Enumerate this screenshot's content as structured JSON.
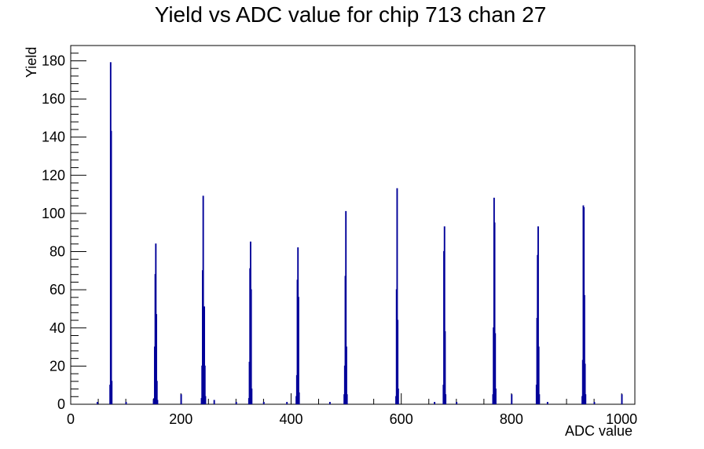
{
  "chart_data": {
    "type": "bar",
    "title": "Yield vs ADC value for chip 713 chan 27",
    "xlabel": "ADC value",
    "ylabel": "Yield",
    "xlim": [
      0,
      1024
    ],
    "ylim": [
      0,
      188
    ],
    "x_ticks": [
      0,
      200,
      400,
      600,
      800,
      1000
    ],
    "y_ticks": [
      0,
      20,
      40,
      60,
      80,
      100,
      120,
      140,
      160,
      180
    ],
    "x_tick_labels": [
      "0",
      "200",
      "400",
      "600",
      "800",
      "1000"
    ],
    "y_tick_labels": [
      "0",
      "20",
      "40",
      "60",
      "80",
      "100",
      "120",
      "140",
      "160",
      "180"
    ],
    "bin_width": 1,
    "line_color": "#000099",
    "bins": [
      {
        "x": 48,
        "y": 1
      },
      {
        "x": 71,
        "y": 10
      },
      {
        "x": 72,
        "y": 179
      },
      {
        "x": 73,
        "y": 143
      },
      {
        "x": 74,
        "y": 12
      },
      {
        "x": 100,
        "y": 1
      },
      {
        "x": 150,
        "y": 2
      },
      {
        "x": 151,
        "y": 3
      },
      {
        "x": 152,
        "y": 30
      },
      {
        "x": 153,
        "y": 68
      },
      {
        "x": 154,
        "y": 84
      },
      {
        "x": 155,
        "y": 47
      },
      {
        "x": 156,
        "y": 12
      },
      {
        "x": 157,
        "y": 2
      },
      {
        "x": 200,
        "y": 5
      },
      {
        "x": 237,
        "y": 3
      },
      {
        "x": 238,
        "y": 20
      },
      {
        "x": 239,
        "y": 70
      },
      {
        "x": 240,
        "y": 109
      },
      {
        "x": 241,
        "y": 37
      },
      {
        "x": 242,
        "y": 51
      },
      {
        "x": 243,
        "y": 20
      },
      {
        "x": 244,
        "y": 4
      },
      {
        "x": 260,
        "y": 2
      },
      {
        "x": 300,
        "y": 1
      },
      {
        "x": 323,
        "y": 3
      },
      {
        "x": 324,
        "y": 22
      },
      {
        "x": 325,
        "y": 71
      },
      {
        "x": 326,
        "y": 85
      },
      {
        "x": 327,
        "y": 60
      },
      {
        "x": 328,
        "y": 8
      },
      {
        "x": 350,
        "y": 1
      },
      {
        "x": 392,
        "y": 1
      },
      {
        "x": 409,
        "y": 4
      },
      {
        "x": 410,
        "y": 15
      },
      {
        "x": 411,
        "y": 65
      },
      {
        "x": 412,
        "y": 82
      },
      {
        "x": 413,
        "y": 56
      },
      {
        "x": 414,
        "y": 6
      },
      {
        "x": 470,
        "y": 1
      },
      {
        "x": 496,
        "y": 5
      },
      {
        "x": 497,
        "y": 20
      },
      {
        "x": 498,
        "y": 67
      },
      {
        "x": 499,
        "y": 101
      },
      {
        "x": 500,
        "y": 30
      },
      {
        "x": 501,
        "y": 5
      },
      {
        "x": 590,
        "y": 4
      },
      {
        "x": 591,
        "y": 60
      },
      {
        "x": 592,
        "y": 113
      },
      {
        "x": 593,
        "y": 44
      },
      {
        "x": 594,
        "y": 8
      },
      {
        "x": 660,
        "y": 1
      },
      {
        "x": 676,
        "y": 10
      },
      {
        "x": 677,
        "y": 80
      },
      {
        "x": 678,
        "y": 93
      },
      {
        "x": 679,
        "y": 38
      },
      {
        "x": 680,
        "y": 5
      },
      {
        "x": 700,
        "y": 1
      },
      {
        "x": 766,
        "y": 5
      },
      {
        "x": 767,
        "y": 40
      },
      {
        "x": 768,
        "y": 108
      },
      {
        "x": 769,
        "y": 95
      },
      {
        "x": 770,
        "y": 37
      },
      {
        "x": 771,
        "y": 8
      },
      {
        "x": 800,
        "y": 5
      },
      {
        "x": 845,
        "y": 10
      },
      {
        "x": 846,
        "y": 45
      },
      {
        "x": 847,
        "y": 78
      },
      {
        "x": 848,
        "y": 93
      },
      {
        "x": 849,
        "y": 30
      },
      {
        "x": 850,
        "y": 5
      },
      {
        "x": 865,
        "y": 1
      },
      {
        "x": 928,
        "y": 4
      },
      {
        "x": 929,
        "y": 23
      },
      {
        "x": 930,
        "y": 104
      },
      {
        "x": 931,
        "y": 103
      },
      {
        "x": 932,
        "y": 57
      },
      {
        "x": 933,
        "y": 21
      },
      {
        "x": 934,
        "y": 5
      },
      {
        "x": 950,
        "y": 1
      },
      {
        "x": 1000,
        "y": 5
      }
    ]
  }
}
